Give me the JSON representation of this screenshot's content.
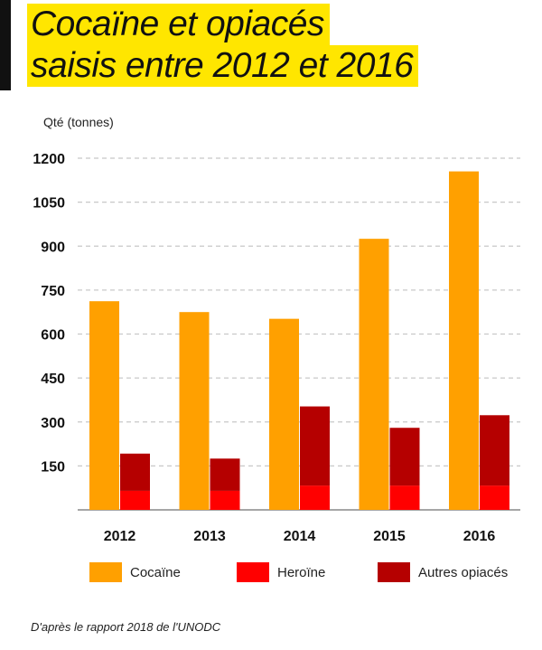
{
  "title": {
    "line1": "Cocaïne et opiacés",
    "line2": "saisis entre 2012 et 2016"
  },
  "source": "D'après le rapport 2018 de l'UNODC",
  "colors": {
    "accent": "#ffe600",
    "cocaine": "#ffa000",
    "heroine": "#ff0000",
    "autres": "#b50000"
  },
  "chart_data": {
    "type": "bar",
    "ylabel": "Qté (tonnes)",
    "xlabel": "",
    "ylim": [
      0,
      1200
    ],
    "yticks": [
      "150",
      "300",
      "450",
      "600",
      "750",
      "900",
      "1050",
      "1200"
    ],
    "grid": true,
    "legend_position": "bottom",
    "categories": [
      "2012",
      "2013",
      "2014",
      "2015",
      "2016"
    ],
    "series": [
      {
        "name": "Cocaïne",
        "color": "#ffa000",
        "values": [
          712,
          675,
          652,
          925,
          1155
        ]
      },
      {
        "name": "Heroïne",
        "color": "#ff0000",
        "values": [
          65,
          65,
          83,
          83,
          83
        ],
        "stack": "opiates"
      },
      {
        "name": "Autres opiacés",
        "color": "#b50000",
        "values": [
          127,
          110,
          270,
          197,
          240
        ],
        "stack": "opiates"
      }
    ]
  }
}
